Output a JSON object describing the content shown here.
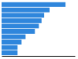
{
  "chart_data": {
    "type": "bar",
    "orientation": "horizontal",
    "categories": [
      null,
      null,
      null,
      null,
      null,
      null,
      null,
      null,
      null,
      null
    ],
    "values": [
      4.8,
      3.6,
      3.2,
      3.0,
      2.8,
      2.5,
      1.8,
      1.5,
      1.2,
      1.2
    ],
    "color": "#2f86dc",
    "xlim": [
      0,
      5.5
    ],
    "tick_labels": false
  }
}
